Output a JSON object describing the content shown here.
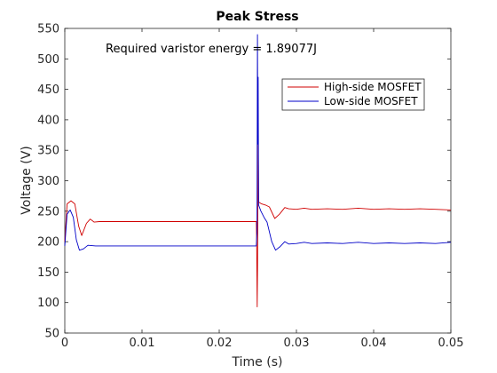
{
  "chart_data": {
    "type": "line",
    "title": "Peak Stress",
    "xlabel": "Time (s)",
    "ylabel": "Voltage (V)",
    "xlim": [
      0,
      0.05
    ],
    "ylim": [
      50,
      550
    ],
    "x_ticks": [
      "0",
      "0.01",
      "0.02",
      "0.03",
      "0.04",
      "0.05"
    ],
    "y_ticks": [
      "50",
      "100",
      "150",
      "200",
      "250",
      "300",
      "350",
      "400",
      "450",
      "500",
      "550"
    ],
    "grid": false,
    "legend_position": "top-right",
    "annotation": "Required varistor energy = 1.89077J",
    "series": [
      {
        "name": "High-side MOSFET",
        "color": "#d00000",
        "points": [
          [
            0,
            200
          ],
          [
            0.0003,
            262
          ],
          [
            0.0008,
            267
          ],
          [
            0.0013,
            262
          ],
          [
            0.0018,
            225
          ],
          [
            0.0022,
            210
          ],
          [
            0.0028,
            230
          ],
          [
            0.0033,
            237
          ],
          [
            0.0038,
            232
          ],
          [
            0.0045,
            233
          ],
          [
            0.01,
            233
          ],
          [
            0.02,
            233
          ],
          [
            0.0248,
            233
          ],
          [
            0.02485,
            200
          ],
          [
            0.02492,
            93
          ],
          [
            0.02496,
            160
          ],
          [
            0.025,
            240
          ],
          [
            0.02505,
            370
          ],
          [
            0.0251,
            265
          ],
          [
            0.0255,
            262
          ],
          [
            0.026,
            260
          ],
          [
            0.0265,
            257
          ],
          [
            0.0272,
            238
          ],
          [
            0.0278,
            245
          ],
          [
            0.0285,
            256
          ],
          [
            0.029,
            254
          ],
          [
            0.03,
            253
          ],
          [
            0.031,
            255
          ],
          [
            0.032,
            253
          ],
          [
            0.034,
            254
          ],
          [
            0.036,
            253
          ],
          [
            0.038,
            255
          ],
          [
            0.04,
            253
          ],
          [
            0.042,
            254
          ],
          [
            0.044,
            253
          ],
          [
            0.046,
            254
          ],
          [
            0.048,
            253
          ],
          [
            0.05,
            252
          ]
        ]
      },
      {
        "name": "Low-side MOSFET",
        "color": "#0000c8",
        "points": [
          [
            0,
            193
          ],
          [
            0.0003,
            245
          ],
          [
            0.0007,
            252
          ],
          [
            0.0011,
            240
          ],
          [
            0.0015,
            203
          ],
          [
            0.0019,
            186
          ],
          [
            0.0024,
            188
          ],
          [
            0.003,
            194
          ],
          [
            0.004,
            193
          ],
          [
            0.01,
            193
          ],
          [
            0.02,
            193
          ],
          [
            0.0248,
            193
          ],
          [
            0.02485,
            205
          ],
          [
            0.0249,
            215
          ],
          [
            0.02495,
            540
          ],
          [
            0.025,
            360
          ],
          [
            0.02505,
            470
          ],
          [
            0.0251,
            260
          ],
          [
            0.0254,
            250
          ],
          [
            0.0258,
            240
          ],
          [
            0.0262,
            232
          ],
          [
            0.0268,
            200
          ],
          [
            0.0273,
            186
          ],
          [
            0.0279,
            192
          ],
          [
            0.0285,
            200
          ],
          [
            0.029,
            196
          ],
          [
            0.03,
            197
          ],
          [
            0.031,
            199
          ],
          [
            0.032,
            197
          ],
          [
            0.034,
            198
          ],
          [
            0.036,
            197
          ],
          [
            0.038,
            199
          ],
          [
            0.04,
            197
          ],
          [
            0.042,
            198
          ],
          [
            0.044,
            197
          ],
          [
            0.046,
            198
          ],
          [
            0.048,
            197
          ],
          [
            0.05,
            199
          ]
        ]
      }
    ]
  }
}
